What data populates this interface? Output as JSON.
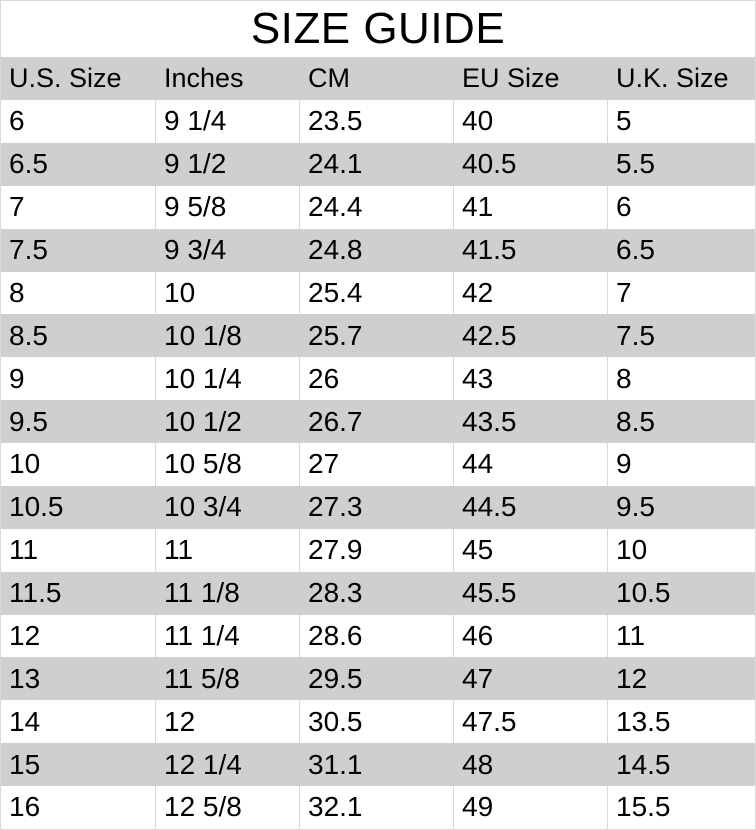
{
  "title": "SIZE GUIDE",
  "colors": {
    "row_alt": "#d0cece",
    "grid_border": "#d9d9d9",
    "text": "#000000",
    "background": "#ffffff"
  },
  "chart_data": {
    "type": "table",
    "title": "SIZE GUIDE",
    "columns": [
      "U.S. Size",
      "Inches",
      "CM",
      "EU Size",
      "U.K. Size"
    ],
    "rows": [
      [
        "6",
        "9 1/4",
        "23.5",
        "40",
        "5"
      ],
      [
        "6.5",
        "9 1/2",
        "24.1",
        "40.5",
        "5.5"
      ],
      [
        "7",
        "9 5/8",
        "24.4",
        "41",
        "6"
      ],
      [
        "7.5",
        "9 3/4",
        "24.8",
        "41.5",
        "6.5"
      ],
      [
        "8",
        "10",
        "25.4",
        "42",
        "7"
      ],
      [
        "8.5",
        "10 1/8",
        "25.7",
        "42.5",
        "7.5"
      ],
      [
        "9",
        "10 1/4",
        "26",
        "43",
        "8"
      ],
      [
        "9.5",
        "10 1/2",
        "26.7",
        "43.5",
        "8.5"
      ],
      [
        "10",
        "10 5/8",
        "27",
        "44",
        "9"
      ],
      [
        "10.5",
        "10 3/4",
        "27.3",
        "44.5",
        "9.5"
      ],
      [
        "11",
        "11",
        "27.9",
        "45",
        "10"
      ],
      [
        "11.5",
        "11 1/8",
        "28.3",
        "45.5",
        "10.5"
      ],
      [
        "12",
        "11 1/4",
        "28.6",
        "46",
        "11"
      ],
      [
        "13",
        "11 5/8",
        "29.5",
        "47",
        "12"
      ],
      [
        "14",
        "12",
        "30.5",
        "47.5",
        "13.5"
      ],
      [
        "15",
        "12 1/4",
        "31.1",
        "48",
        "14.5"
      ],
      [
        "16",
        "12 5/8",
        "32.1",
        "49",
        "15.5"
      ]
    ],
    "layout": {
      "header_fill": "#d0cece",
      "alternating_row_fill": "#d0cece",
      "striping": "even rows shaded, starting from second data row"
    }
  }
}
